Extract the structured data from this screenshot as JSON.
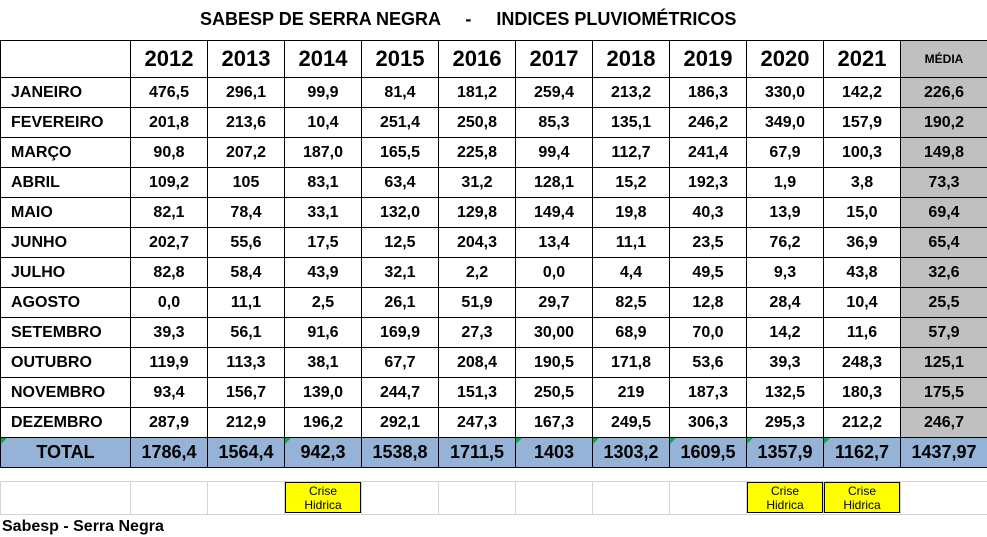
{
  "title": "SABESP DE SERRA NEGRA     -     INDICES PLUVIOMÉTRICOS",
  "header": {
    "years": [
      "2012",
      "2013",
      "2014",
      "2015",
      "2016",
      "2017",
      "2018",
      "2019",
      "2020",
      "2021"
    ],
    "average_label": "MÉDIA"
  },
  "rows": [
    {
      "month": "JANEIRO",
      "values": [
        "476,5",
        "296,1",
        "99,9",
        "81,4",
        "181,2",
        "259,4",
        "213,2",
        "186,3",
        "330,0",
        "142,2"
      ],
      "average": "226,6"
    },
    {
      "month": "FEVEREIRO",
      "values": [
        "201,8",
        "213,6",
        "10,4",
        "251,4",
        "250,8",
        "85,3",
        "135,1",
        "246,2",
        "349,0",
        "157,9"
      ],
      "average": "190,2"
    },
    {
      "month": "MARÇO",
      "values": [
        "90,8",
        "207,2",
        "187,0",
        "165,5",
        "225,8",
        "99,4",
        "112,7",
        "241,4",
        "67,9",
        "100,3"
      ],
      "average": "149,8"
    },
    {
      "month": "ABRIL",
      "values": [
        "109,2",
        "105",
        "83,1",
        "63,4",
        "31,2",
        "128,1",
        "15,2",
        "192,3",
        "1,9",
        "3,8"
      ],
      "average": "73,3"
    },
    {
      "month": "MAIO",
      "values": [
        "82,1",
        "78,4",
        "33,1",
        "132,0",
        "129,8",
        "149,4",
        "19,8",
        "40,3",
        "13,9",
        "15,0"
      ],
      "average": "69,4"
    },
    {
      "month": "JUNHO",
      "values": [
        "202,7",
        "55,6",
        "17,5",
        "12,5",
        "204,3",
        "13,4",
        "11,1",
        "23,5",
        "76,2",
        "36,9"
      ],
      "average": "65,4"
    },
    {
      "month": "JULHO",
      "values": [
        "82,8",
        "58,4",
        "43,9",
        "32,1",
        "2,2",
        "0,0",
        "4,4",
        "49,5",
        "9,3",
        "43,8"
      ],
      "average": "32,6"
    },
    {
      "month": "AGOSTO",
      "values": [
        "0,0",
        "11,1",
        "2,5",
        "26,1",
        "51,9",
        "29,7",
        "82,5",
        "12,8",
        "28,4",
        "10,4"
      ],
      "average": "25,5"
    },
    {
      "month": "SETEMBRO",
      "values": [
        "39,3",
        "56,1",
        "91,6",
        "169,9",
        "27,3",
        "30,00",
        "68,9",
        "70,0",
        "14,2",
        "11,6"
      ],
      "average": "57,9"
    },
    {
      "month": "OUTUBRO",
      "values": [
        "119,9",
        "113,3",
        "38,1",
        "67,7",
        "208,4",
        "190,5",
        "171,8",
        "53,6",
        "39,3",
        "248,3"
      ],
      "average": "125,1"
    },
    {
      "month": "NOVEMBRO",
      "values": [
        "93,4",
        "156,7",
        "139,0",
        "244,7",
        "151,3",
        "250,5",
        "219",
        "187,3",
        "132,5",
        "180,3"
      ],
      "average": "175,5"
    },
    {
      "month": "DEZEMBRO",
      "values": [
        "287,9",
        "212,9",
        "196,2",
        "292,1",
        "247,3",
        "167,3",
        "249,5",
        "306,3",
        "295,3",
        "212,2"
      ],
      "average": "246,7"
    }
  ],
  "total": {
    "label": "TOTAL",
    "values": [
      "1786,4",
      "1564,4",
      "942,3",
      "1538,8",
      "1711,5",
      "1403",
      "1303,2",
      "1609,5",
      "1357,9",
      "1162,7"
    ],
    "average": "1437,97"
  },
  "notes": {
    "2014": {
      "line1": "Crise",
      "line2": "Hidrica"
    },
    "2020": {
      "line1": "Crise",
      "line2": "Hidrica"
    },
    "2021": {
      "line1": "Crise",
      "line2": "Hidrica"
    }
  },
  "footer": "Sabesp - Serra Negra",
  "colors": {
    "average_column": "#c0c0c0",
    "total_row": "#95b3d7",
    "note_highlight": "#ffff00"
  }
}
